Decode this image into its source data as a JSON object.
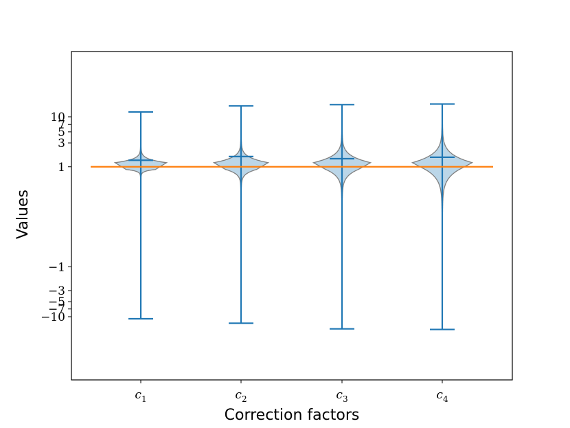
{
  "chart_data": {
    "type": "violin",
    "title": "",
    "xlabel": "Correction factors",
    "ylabel": "Values",
    "categories": [
      "c1",
      "c2",
      "c3",
      "c4"
    ],
    "category_labels": [
      {
        "base": "c",
        "sub": "1"
      },
      {
        "base": "c",
        "sub": "2"
      },
      {
        "base": "c",
        "sub": "3"
      },
      {
        "base": "c",
        "sub": "4"
      }
    ],
    "yscale": "symlog",
    "yticks": [
      {
        "value": -10,
        "label": "−10"
      },
      {
        "value": -7,
        "label": "−7"
      },
      {
        "value": -5,
        "label": "−5"
      },
      {
        "value": -3,
        "label": "−3"
      },
      {
        "value": -1,
        "label": "−1"
      },
      {
        "value": 1,
        "label": "1"
      },
      {
        "value": 3,
        "label": "3"
      },
      {
        "value": 5,
        "label": "5"
      },
      {
        "value": 7,
        "label": "7"
      },
      {
        "value": 10,
        "label": "10"
      }
    ],
    "series": [
      {
        "category": "c1",
        "min": -11.0,
        "max": 12.5,
        "mean": 1.35,
        "spread": 0.55
      },
      {
        "category": "c2",
        "min": -13.5,
        "max": 16.5,
        "mean": 1.6,
        "spread": 0.6
      },
      {
        "category": "c3",
        "min": -17.5,
        "max": 17.5,
        "mean": 1.45,
        "spread": 0.66
      },
      {
        "category": "c4",
        "min": -18.0,
        "max": 18.0,
        "mean": 1.55,
        "spread": 0.72
      }
    ],
    "reference_line": {
      "value": 1,
      "color": "#ff7f0e"
    },
    "colors": {
      "violin_fill": "#1f77b4",
      "violin_edge": "#7f7f7f",
      "whisker": "#1f77b4"
    },
    "grid": false
  }
}
